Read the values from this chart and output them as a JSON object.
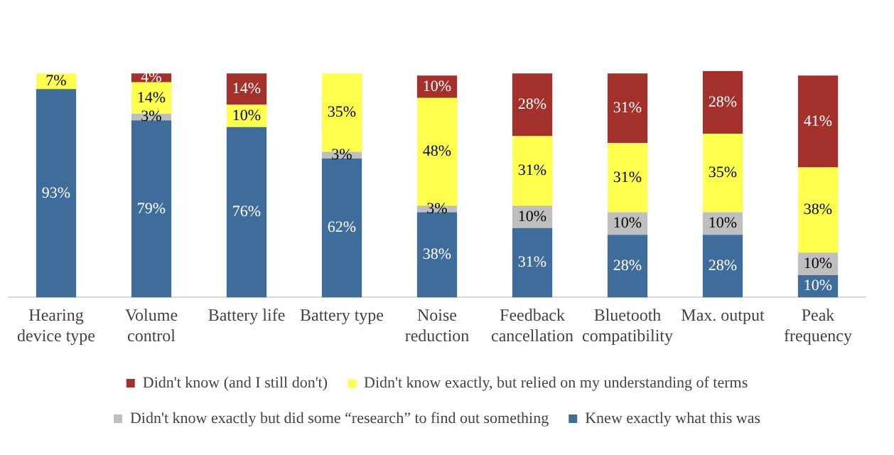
{
  "chart_data": {
    "type": "bar",
    "stacked": true,
    "categories": [
      "Hearing device type",
      "Volume control",
      "Battery life",
      "Battery type",
      "Noise reduction",
      "Feedback cancellation",
      "Bluetooth compatibility",
      "Max. output",
      "Peak frequency"
    ],
    "series": [
      {
        "name": "Knew exactly what this was",
        "color": "#3e6d9c",
        "values": [
          93,
          79,
          76,
          62,
          38,
          31,
          28,
          28,
          10
        ],
        "value_labels": [
          "93%",
          "79%",
          "76%",
          "62%",
          "38%",
          "31%",
          "28%",
          "28%",
          "10%"
        ]
      },
      {
        "name": "Didn't know exactly but did some “research” to find out something",
        "color": "#bfbfbf",
        "values": [
          0,
          3,
          0,
          3,
          3,
          10,
          10,
          10,
          10
        ],
        "value_labels": [
          null,
          "3%",
          null,
          "3%",
          "3%",
          "10%",
          "10%",
          "10%",
          "10%"
        ]
      },
      {
        "name": "Didn't know exactly, but relied on my understanding of terms",
        "color": "#ffff4d",
        "values": [
          7,
          14,
          10,
          35,
          48,
          31,
          31,
          35,
          38
        ],
        "value_labels": [
          "7%",
          "14%",
          "10%",
          "35%",
          "48%",
          "31%",
          "31%",
          "35%",
          "38%"
        ]
      },
      {
        "name": "Didn't know (and I still don't)",
        "color": "#a3302b",
        "values": [
          0,
          4,
          14,
          0,
          10,
          28,
          31,
          28,
          41
        ],
        "value_labels": [
          null,
          "4%",
          "14%",
          null,
          "10%",
          "28%",
          "31%",
          "28%",
          "41%"
        ]
      }
    ],
    "ylim": [
      0,
      101
    ],
    "tick_labels": "x",
    "grid": false,
    "legend": "bottom"
  }
}
